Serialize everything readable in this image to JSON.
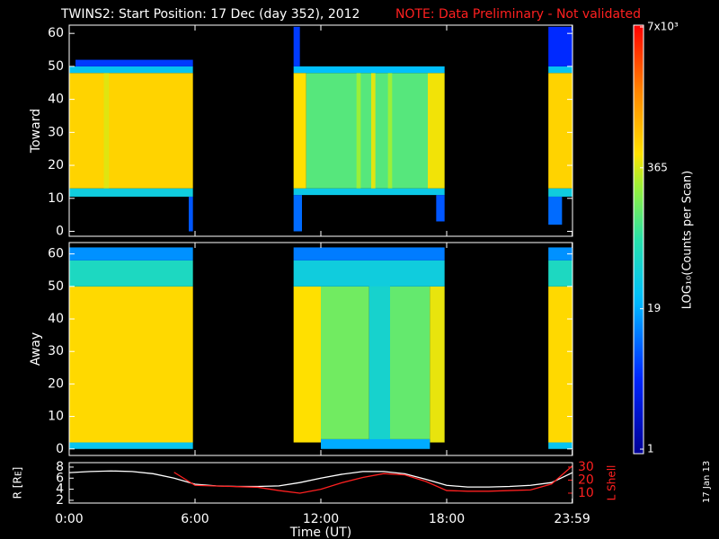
{
  "header": {
    "title": "TWINS2: Start Position: 17 Dec (day 352), 2012",
    "note": "NOTE: Data Preliminary - Not validated",
    "stamp": "17 Jan 13"
  },
  "colorbar": {
    "label": "LOG₁₀(Counts per Scan)",
    "lim": [
      1,
      7000
    ],
    "log": true,
    "ticks": [
      {
        "value": 7000,
        "label": "7x10³"
      },
      365,
      19,
      1
    ]
  },
  "chart_data": [
    {
      "type": "heatmap",
      "ylabel": "Toward",
      "xlim": [
        0,
        24
      ],
      "ylim": [
        -1.5,
        62.5
      ],
      "yticks": [
        0,
        10,
        20,
        30,
        40,
        50,
        60
      ],
      "blocks": [
        {
          "x": [
            0,
            5.9
          ],
          "y": [
            13,
            48
          ],
          "value": 600
        },
        {
          "x": [
            1.65,
            1.9
          ],
          "y": [
            13,
            48
          ],
          "value": 400
        },
        {
          "x": [
            0,
            5.9
          ],
          "y": [
            48,
            50
          ],
          "value": 30
        },
        {
          "x": [
            0,
            5.9
          ],
          "y": [
            10.5,
            13
          ],
          "value": 40
        },
        {
          "x": [
            5.7,
            5.9
          ],
          "y": [
            0,
            10.5
          ],
          "value": 8
        },
        {
          "x": [
            0.3,
            5.9
          ],
          "y": [
            50,
            52
          ],
          "value": 6
        },
        {
          "x": [
            10.7,
            11.3
          ],
          "y": [
            13,
            48
          ],
          "value": 500
        },
        {
          "x": [
            11.3,
            17.1
          ],
          "y": [
            13,
            48
          ],
          "value": 130
        },
        {
          "x": [
            13.7,
            13.9
          ],
          "y": [
            13,
            48
          ],
          "value": 250
        },
        {
          "x": [
            14.4,
            14.6
          ],
          "y": [
            13,
            48
          ],
          "value": 400
        },
        {
          "x": [
            15.2,
            15.4
          ],
          "y": [
            13,
            48
          ],
          "value": 250
        },
        {
          "x": [
            17.1,
            17.9
          ],
          "y": [
            13,
            48
          ],
          "value": 450
        },
        {
          "x": [
            10.7,
            17.9
          ],
          "y": [
            48,
            50
          ],
          "value": 25
        },
        {
          "x": [
            10.7,
            17.9
          ],
          "y": [
            11,
            13
          ],
          "value": 35
        },
        {
          "x": [
            10.7,
            11.1
          ],
          "y": [
            0,
            11
          ],
          "value": 10
        },
        {
          "x": [
            17.5,
            17.9
          ],
          "y": [
            3,
            11
          ],
          "value": 8
        },
        {
          "x": [
            10.7,
            11
          ],
          "y": [
            50,
            62
          ],
          "value": 6
        },
        {
          "x": [
            22.85,
            24
          ],
          "y": [
            13,
            48
          ],
          "value": 600
        },
        {
          "x": [
            22.85,
            24
          ],
          "y": [
            48,
            50
          ],
          "value": 30
        },
        {
          "x": [
            22.85,
            24
          ],
          "y": [
            10.5,
            13
          ],
          "value": 40
        },
        {
          "x": [
            22.85,
            23.5
          ],
          "y": [
            2,
            10.5
          ],
          "value": 10
        },
        {
          "x": [
            22.85,
            24
          ],
          "y": [
            50,
            62
          ],
          "value": 5
        }
      ]
    },
    {
      "type": "heatmap",
      "ylabel": "Away",
      "xlim": [
        0,
        24
      ],
      "ylim": [
        -2,
        63.5
      ],
      "yticks": [
        0,
        10,
        20,
        30,
        40,
        50,
        60
      ],
      "blocks": [
        {
          "x": [
            0,
            5.9
          ],
          "y": [
            2,
            50
          ],
          "value": 550
        },
        {
          "x": [
            0,
            5.9
          ],
          "y": [
            50,
            58
          ],
          "value": 60
        },
        {
          "x": [
            0,
            5.9
          ],
          "y": [
            58,
            62
          ],
          "value": 15
        },
        {
          "x": [
            0,
            5.9
          ],
          "y": [
            0,
            2
          ],
          "value": 30
        },
        {
          "x": [
            10.7,
            12
          ],
          "y": [
            2,
            50
          ],
          "value": 500
        },
        {
          "x": [
            12,
            14.3
          ],
          "y": [
            3,
            50
          ],
          "value": 170
        },
        {
          "x": [
            14.3,
            15.3
          ],
          "y": [
            2,
            52
          ],
          "value": 50
        },
        {
          "x": [
            15.3,
            17.2
          ],
          "y": [
            3,
            50
          ],
          "value": 150
        },
        {
          "x": [
            17.2,
            17.9
          ],
          "y": [
            2,
            50
          ],
          "value": 420
        },
        {
          "x": [
            10.7,
            17.9
          ],
          "y": [
            50,
            58
          ],
          "value": 40
        },
        {
          "x": [
            10.7,
            17.9
          ],
          "y": [
            58,
            62
          ],
          "value": 12
        },
        {
          "x": [
            12,
            17.2
          ],
          "y": [
            0,
            3
          ],
          "value": 20
        },
        {
          "x": [
            22.85,
            24
          ],
          "y": [
            2,
            50
          ],
          "value": 550
        },
        {
          "x": [
            22.85,
            24
          ],
          "y": [
            50,
            58
          ],
          "value": 60
        },
        {
          "x": [
            22.85,
            24
          ],
          "y": [
            58,
            62
          ],
          "value": 15
        },
        {
          "x": [
            22.85,
            24
          ],
          "y": [
            0,
            2
          ],
          "value": 30
        }
      ]
    },
    {
      "type": "line",
      "xlabel": "Time (UT)",
      "ylabel": "R [Rᴇ]",
      "y2label": "L Shell",
      "xlim": [
        0,
        24
      ],
      "xticks": [
        {
          "value": 0,
          "label": "0:00"
        },
        {
          "value": 6,
          "label": "6:00"
        },
        {
          "value": 12,
          "label": "12:00"
        },
        {
          "value": 18,
          "label": "18:00"
        },
        {
          "value": 23.983,
          "label": "23:59"
        }
      ],
      "ylim": [
        1.5,
        8.8
      ],
      "yticks": [
        2,
        4,
        6,
        8
      ],
      "y2lim": [
        2.4,
        33.4
      ],
      "y2ticks": [
        10,
        20,
        30
      ],
      "x": [
        0,
        1,
        2,
        3,
        4,
        5,
        6,
        7,
        8,
        9,
        10,
        11,
        12,
        13,
        14,
        15,
        16,
        17,
        18,
        19,
        20,
        21,
        22,
        23,
        24
      ],
      "series": [
        {
          "color": "#ffffff",
          "values": [
            7.0,
            7.2,
            7.3,
            7.2,
            6.8,
            6.0,
            4.9,
            4.6,
            4.5,
            4.5,
            4.6,
            5.2,
            6.0,
            6.7,
            7.2,
            7.2,
            6.8,
            5.8,
            4.7,
            4.4,
            4.4,
            4.5,
            4.7,
            5.2,
            7.0
          ]
        },
        {
          "color": "#ff2020",
          "axis": "y2",
          "values": [
            null,
            null,
            null,
            null,
            null,
            26,
            16,
            15.5,
            15,
            14.5,
            12,
            10,
            13,
            18,
            22,
            25,
            24,
            19,
            12,
            11.5,
            11.5,
            12,
            12.5,
            17,
            31
          ]
        }
      ]
    }
  ]
}
